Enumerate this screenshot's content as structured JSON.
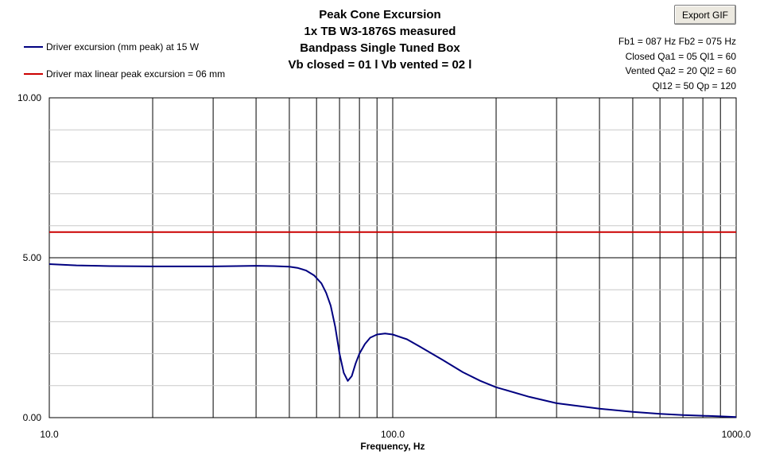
{
  "toolbar": {
    "export_label": "Export GIF"
  },
  "params": [
    "Fb1 = 087 Hz  Fb2 = 075 Hz",
    "Closed Qa1 = 05  Ql1 = 60",
    "Vented Qa2 = 20  Ql2 = 60",
    "Ql12 = 50  Qp = 120"
  ],
  "chart_data": {
    "type": "line",
    "title_lines": [
      "Peak Cone Excursion",
      "1x TB W3-1876S measured",
      "Bandpass Single Tuned Box",
      "Vb closed = 01 l    Vb vented = 02 l"
    ],
    "xlabel": "Frequency, Hz",
    "ylabel": "",
    "x_scale": "log",
    "xlim": [
      10,
      1000
    ],
    "ylim": [
      0,
      10
    ],
    "x_tick_labels": [
      "10.0",
      "100.0",
      "1000.0"
    ],
    "y_tick_labels": [
      "0.00",
      "5.00",
      "10.00"
    ],
    "grid": true,
    "legend_position": "top-left",
    "series": [
      {
        "name": "Driver excursion (mm peak) at 15 W",
        "color": "#000080",
        "x": [
          10,
          12,
          15,
          20,
          25,
          30,
          35,
          40,
          45,
          50,
          53,
          56,
          59,
          62,
          64,
          66,
          68,
          70,
          72,
          74,
          76,
          78,
          80,
          83,
          86,
          90,
          95,
          100,
          110,
          120,
          140,
          160,
          180,
          200,
          250,
          300,
          400,
          500,
          600,
          700,
          800,
          900,
          1000
        ],
        "y": [
          4.8,
          4.76,
          4.74,
          4.73,
          4.73,
          4.73,
          4.74,
          4.75,
          4.74,
          4.72,
          4.68,
          4.6,
          4.45,
          4.2,
          3.9,
          3.5,
          2.85,
          2.0,
          1.4,
          1.15,
          1.3,
          1.7,
          2.0,
          2.3,
          2.5,
          2.6,
          2.63,
          2.6,
          2.45,
          2.22,
          1.8,
          1.42,
          1.15,
          0.95,
          0.65,
          0.45,
          0.28,
          0.18,
          0.12,
          0.08,
          0.06,
          0.04,
          0.02
        ]
      },
      {
        "name": "Driver max linear peak excursion = 06 mm",
        "color": "#cc0000",
        "x": [
          10,
          1000
        ],
        "y": [
          5.8,
          5.8
        ]
      }
    ]
  }
}
